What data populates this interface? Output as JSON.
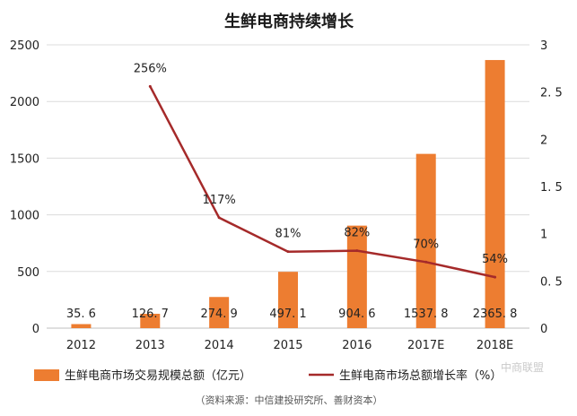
{
  "chart_data": {
    "type": "bar+line",
    "title": "生鲜电商持续增长",
    "categories": [
      "2012",
      "2013",
      "2014",
      "2015",
      "2016",
      "2017E",
      "2018E"
    ],
    "series": [
      {
        "name": "生鲜电商市场交易规模总额（亿元）",
        "type": "bar",
        "axis": "left",
        "color": "#ED7D31",
        "values": [
          35.6,
          126.7,
          274.9,
          497.1,
          904.6,
          1537.8,
          2365.8
        ],
        "labels": [
          "35. 6",
          "126. 7",
          "274. 9",
          "497. 1",
          "904. 6",
          "1537. 8",
          "2365. 8"
        ]
      },
      {
        "name": "生鲜电商市场总额增长率（%）",
        "type": "line",
        "axis": "right",
        "color": "#A52A2A",
        "values": [
          null,
          2.56,
          1.17,
          0.81,
          0.82,
          0.7,
          0.54
        ],
        "labels": [
          "",
          "256%",
          "117%",
          "81%",
          "82%",
          "70%",
          "54%"
        ]
      }
    ],
    "y_left": {
      "min": 0,
      "max": 2500,
      "ticks": [
        "0",
        "500",
        "1000",
        "1500",
        "2000",
        "2500"
      ]
    },
    "y_right": {
      "min": 0,
      "max": 3,
      "ticks": [
        "0",
        "0. 5",
        "1",
        "1. 5",
        "2",
        "2. 5",
        "3"
      ]
    },
    "grid": true,
    "legend": "bottom"
  },
  "source_note": "（资料来源：中信建投研究所、善财资本）",
  "watermark": "中商联盟"
}
